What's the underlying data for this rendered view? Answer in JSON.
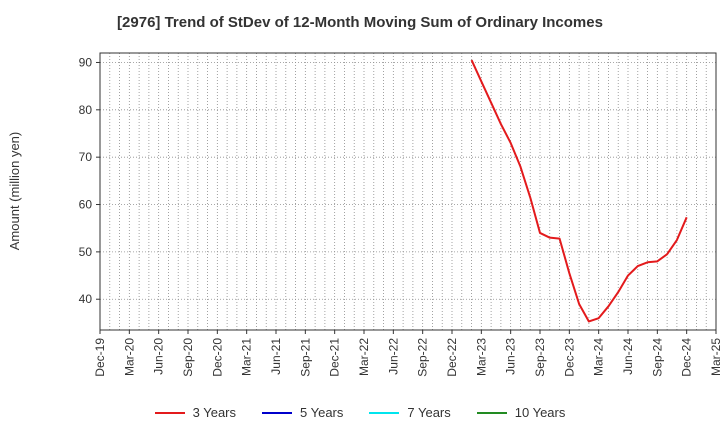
{
  "chart_data": {
    "type": "line",
    "title": "[2976]  Trend of StDev of 12-Month Moving Sum of Ordinary Incomes",
    "ylabel": "Amount (million yen)",
    "xlabel": "",
    "ylim": [
      33.5,
      92.0
    ],
    "yticks": [
      40,
      50,
      60,
      70,
      80,
      90
    ],
    "xlim": [
      "2019-12",
      "2025-03"
    ],
    "x_tick_labels": [
      "Dec-19",
      "Mar-20",
      "Jun-20",
      "Sep-20",
      "Dec-20",
      "Mar-21",
      "Jun-21",
      "Sep-21",
      "Dec-21",
      "Mar-22",
      "Jun-22",
      "Sep-22",
      "Dec-22",
      "Mar-23",
      "Jun-23",
      "Sep-23",
      "Dec-23",
      "Mar-24",
      "Jun-24",
      "Sep-24",
      "Dec-24",
      "Mar-25"
    ],
    "grid": true,
    "legend_position": "bottom",
    "series": [
      {
        "name": "3 Years",
        "color": "#e31a1c",
        "points": [
          {
            "x": "2023-02",
            "y": 90.5
          },
          {
            "x": "2023-03",
            "y": 86.0
          },
          {
            "x": "2023-04",
            "y": 81.5
          },
          {
            "x": "2023-05",
            "y": 77.0
          },
          {
            "x": "2023-06",
            "y": 73.0
          },
          {
            "x": "2023-07",
            "y": 68.0
          },
          {
            "x": "2023-08",
            "y": 61.5
          },
          {
            "x": "2023-09",
            "y": 54.0
          },
          {
            "x": "2023-10",
            "y": 53.0
          },
          {
            "x": "2023-11",
            "y": 52.8
          },
          {
            "x": "2023-12",
            "y": 45.5
          },
          {
            "x": "2024-01",
            "y": 39.0
          },
          {
            "x": "2024-02",
            "y": 35.3
          },
          {
            "x": "2024-03",
            "y": 36.0
          },
          {
            "x": "2024-04",
            "y": 38.5
          },
          {
            "x": "2024-05",
            "y": 41.5
          },
          {
            "x": "2024-06",
            "y": 45.0
          },
          {
            "x": "2024-07",
            "y": 47.0
          },
          {
            "x": "2024-08",
            "y": 47.8
          },
          {
            "x": "2024-09",
            "y": 48.0
          },
          {
            "x": "2024-10",
            "y": 49.5
          },
          {
            "x": "2024-11",
            "y": 52.5
          },
          {
            "x": "2024-12",
            "y": 57.3
          }
        ]
      },
      {
        "name": "5 Years",
        "color": "#0000cc",
        "points": []
      },
      {
        "name": "7 Years",
        "color": "#00e5ee",
        "points": []
      },
      {
        "name": "10 Years",
        "color": "#228b22",
        "points": []
      }
    ]
  }
}
